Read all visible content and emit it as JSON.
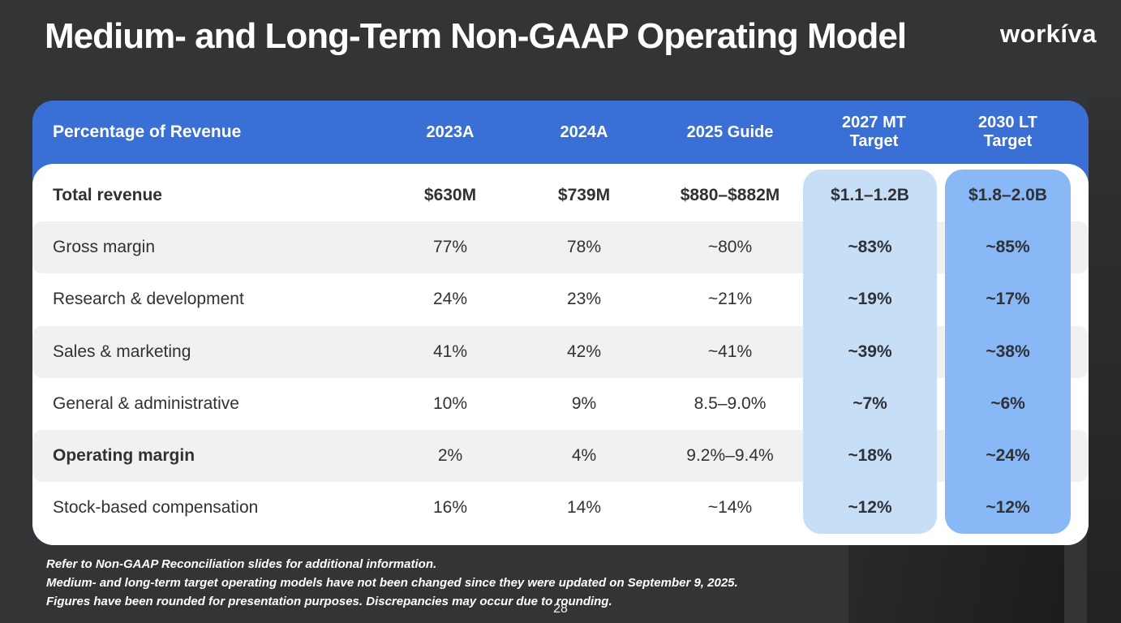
{
  "slide": {
    "title": "Medium- and Long-Term Non-GAAP Operating Model",
    "logo_text": "workíva",
    "page_number": "28",
    "footnotes": [
      "Refer to Non-GAAP Reconciliation slides for additional information.",
      "Medium- and long-term target operating models have not been changed since they were updated on September 9, 2025.",
      "Figures have been rounded for presentation purposes. Discrepancies may occur due to rounding."
    ]
  },
  "table": {
    "header": {
      "label": "Percentage of Revenue",
      "columns": [
        "2023A",
        "2024A",
        "2025 Guide",
        "2027 MT Target",
        "2030 LT Target"
      ]
    },
    "rows": [
      {
        "label": "Total revenue",
        "values": [
          "$630M",
          "$739M",
          "$880–$882M",
          "$1.1–1.2B",
          "$1.8–2.0B"
        ]
      },
      {
        "label": "Gross margin",
        "values": [
          "77%",
          "78%",
          "~80%",
          "~83%",
          "~85%"
        ]
      },
      {
        "label": "Research & development",
        "values": [
          "24%",
          "23%",
          "~21%",
          "~19%",
          "~17%"
        ]
      },
      {
        "label": "Sales & marketing",
        "values": [
          "41%",
          "42%",
          "~41%",
          "~39%",
          "~38%"
        ]
      },
      {
        "label": "General & administrative",
        "values": [
          "10%",
          "9%",
          "8.5–9.0%",
          "~7%",
          "~6%"
        ]
      },
      {
        "label": "Operating margin",
        "values": [
          "2%",
          "4%",
          "9.2%–9.4%",
          "~18%",
          "~24%"
        ]
      },
      {
        "label": "Stock-based compensation",
        "values": [
          "16%",
          "14%",
          "~14%",
          "~12%",
          "~12%"
        ]
      }
    ]
  },
  "colors": {
    "background": "#333436",
    "header_blue": "#3a6fd6",
    "pill_light_blue": "#c7def7",
    "pill_medium_blue": "#88b8f5",
    "row_stripe": "#f1f1f2",
    "text_dark": "#303136",
    "text_white": "#ffffff"
  }
}
